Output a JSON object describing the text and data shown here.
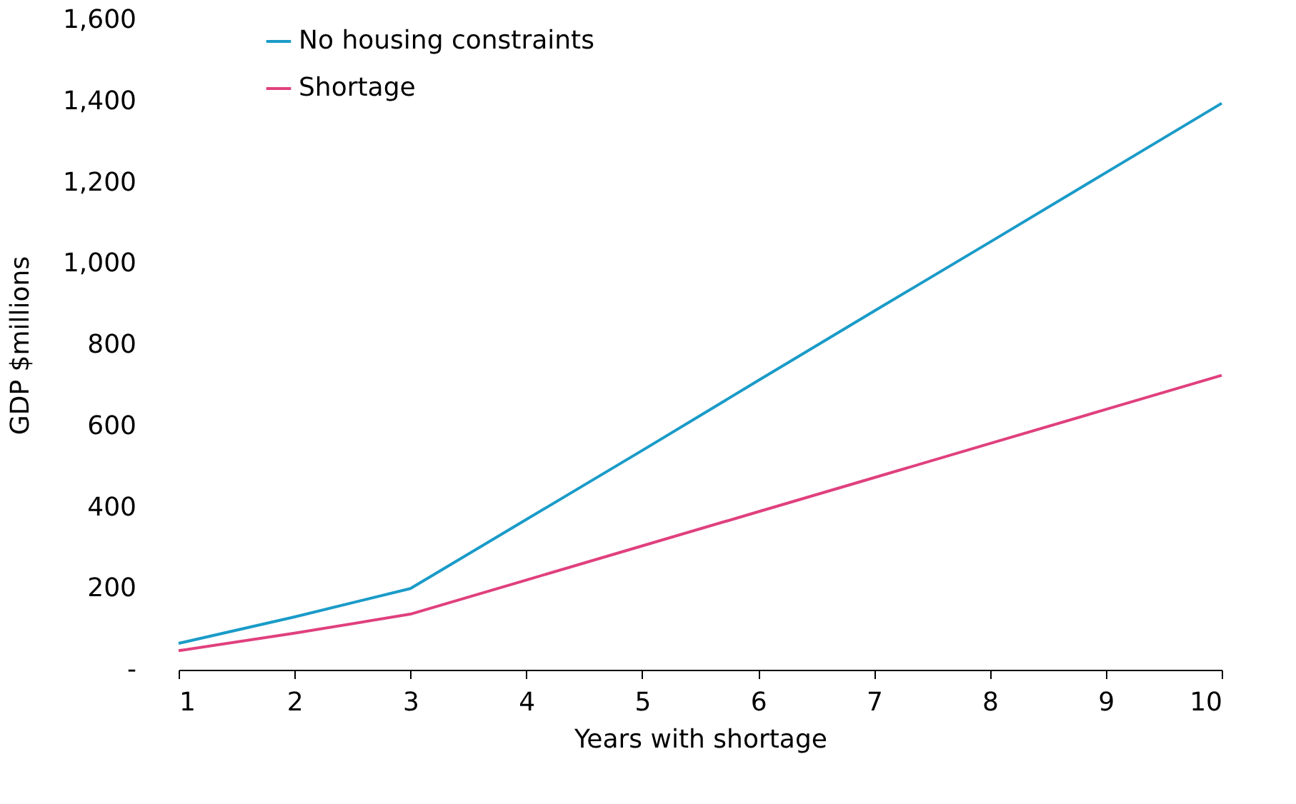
{
  "chart_data": {
    "type": "line",
    "xlabel": "Years with shortage",
    "ylabel": "GDP $millions",
    "x": [
      1,
      2,
      3,
      4,
      5,
      6,
      7,
      8,
      9,
      10
    ],
    "series": [
      {
        "name": "No housing constraints",
        "color": "#1a9bc8",
        "values": [
          65,
          130,
          200,
          370,
          540,
          712,
          883,
          1053,
          1224,
          1395
        ]
      },
      {
        "name": "Shortage",
        "color": "#e0407e",
        "values": [
          47,
          90,
          137,
          221,
          305,
          389,
          473,
          557,
          641,
          725
        ]
      }
    ],
    "xlim": [
      1,
      10
    ],
    "xticks": [
      1,
      2,
      3,
      4,
      5,
      6,
      7,
      8,
      9,
      10
    ],
    "ylim": [
      0,
      1600
    ],
    "yticks": [
      {
        "value": 0,
        "label": "-"
      },
      200,
      400,
      600,
      800,
      {
        "value": 1000,
        "label": "1,000"
      },
      {
        "value": 1200,
        "label": "1,200"
      },
      {
        "value": 1400,
        "label": "1,400"
      },
      {
        "value": 1600,
        "label": "1,600"
      }
    ],
    "legend": "top left",
    "grid": false,
    "marker": "none",
    "line_style": "solid"
  }
}
